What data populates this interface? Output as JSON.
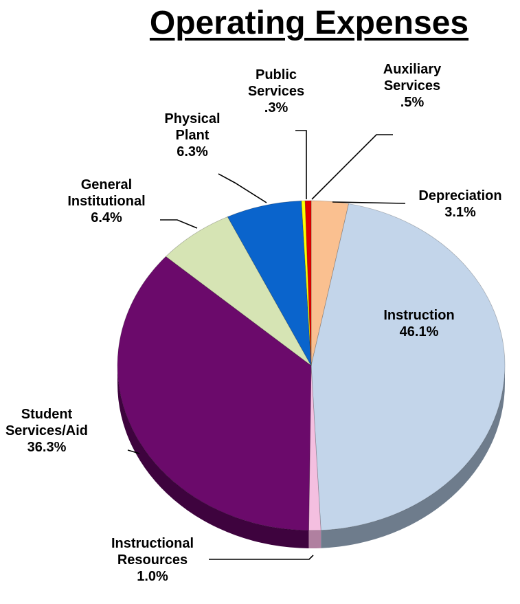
{
  "chart_data": {
    "type": "pie",
    "title": "Operating Expenses",
    "slices": [
      {
        "label": [
          "Depreciation"
        ],
        "value_label": "3.1%",
        "value": 3.1,
        "color": "#FAC090",
        "side": "#C8956A"
      },
      {
        "label": [
          "Instruction"
        ],
        "value_label": "46.1%",
        "value": 46.1,
        "color": "#C3D5EA",
        "side": "#6E7C8C"
      },
      {
        "label": [
          "Instructional",
          "Resources"
        ],
        "value_label": "1.0%",
        "value": 1.0,
        "color": "#F4BFE0",
        "side": "#B080A0"
      },
      {
        "label": [
          "Student",
          "Services/Aid"
        ],
        "value_label": "36.3%",
        "value": 36.3,
        "color": "#6B0A6B",
        "side": "#3E033E"
      },
      {
        "label": [
          "General",
          "Institutional"
        ],
        "value_label": "6.4%",
        "value": 6.4,
        "color": "#D6E4B4",
        "side": "#9AA880"
      },
      {
        "label": [
          "Physical",
          "Plant"
        ],
        "value_label": "6.3%",
        "value": 6.3,
        "color": "#0A64CC",
        "side": "#06407F"
      },
      {
        "label": [
          "Public",
          "Services"
        ],
        "value_label": ".3%",
        "value": 0.3,
        "color": "#FFFF00",
        "side": "#B0B000"
      },
      {
        "label": [
          "Auxiliary",
          "Services"
        ],
        "value_label": ".5%",
        "value": 0.5,
        "color": "#E00000",
        "side": "#8A0000"
      }
    ]
  }
}
